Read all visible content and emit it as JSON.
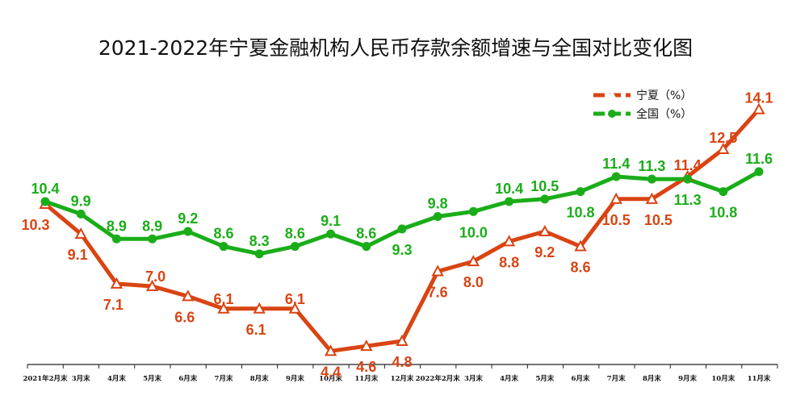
{
  "chart_data": {
    "type": "line",
    "title": "2021-2022年宁夏金融机构人民币存款余额增速与全国对比变化图",
    "categories": [
      "2021年2月末",
      "3月末",
      "4月末",
      "5月末",
      "6月末",
      "7月末",
      "8月末",
      "9月末",
      "10月末",
      "11月末",
      "12月末",
      "2022年2月末",
      "3月末",
      "4月末",
      "5月末",
      "6月末",
      "7月末",
      "8月末",
      "9月末",
      "10月末",
      "11月末"
    ],
    "series": [
      {
        "name": "宁夏（%）",
        "color": "#d94412",
        "marker": "triangle",
        "values": [
          10.3,
          9.1,
          7.1,
          7.0,
          6.6,
          6.1,
          6.1,
          6.1,
          4.4,
          4.6,
          4.8,
          7.6,
          8.0,
          8.8,
          9.2,
          8.6,
          10.5,
          10.5,
          11.4,
          12.5,
          14.1
        ]
      },
      {
        "name": "全国（%）",
        "color": "#1aad19",
        "marker": "circle",
        "values": [
          10.4,
          9.9,
          8.9,
          8.9,
          9.2,
          8.6,
          8.3,
          8.6,
          9.1,
          8.6,
          9.3,
          9.8,
          10.0,
          10.4,
          10.5,
          10.8,
          11.4,
          11.3,
          11.3,
          10.8,
          11.6
        ]
      }
    ],
    "ylim": [
      0,
      16
    ],
    "grid": false,
    "legend": "top-right"
  }
}
